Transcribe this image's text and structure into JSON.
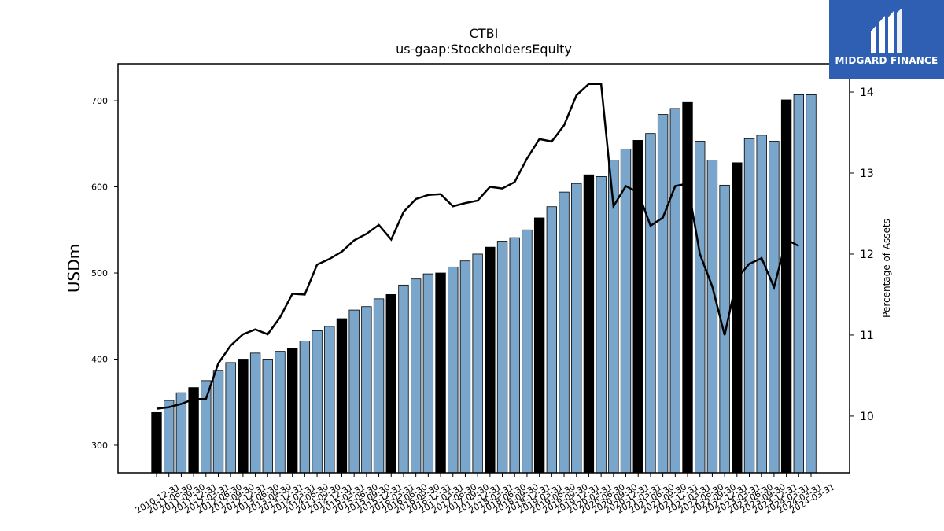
{
  "chart_data": {
    "type": "bar",
    "title": "CTBI",
    "subtitle": "us-gaap:StockholdersEquity",
    "ylabel": "USDm",
    "y2label": "Percentage of Assets",
    "ylim": [
      268,
      743
    ],
    "y2lim": [
      9.3,
      14.35
    ],
    "yticks": [
      300,
      400,
      500,
      600,
      700
    ],
    "y2ticks": [
      10,
      11,
      12,
      13,
      14
    ],
    "colors": {
      "bar": "#7aa6cc",
      "highlight": "#000000",
      "line": "#000000",
      "axis": "#000000"
    },
    "categories": [
      "2010-12-31",
      "2011-03-31",
      "2011-06-30",
      "2011-09-30",
      "2011-12-31",
      "2012-03-31",
      "2012-06-30",
      "2012-09-30",
      "2012-12-31",
      "2013-03-31",
      "2013-06-30",
      "2013-09-30",
      "2013-12-31",
      "2014-03-31",
      "2014-06-30",
      "2014-09-30",
      "2014-12-31",
      "2015-03-31",
      "2015-06-30",
      "2015-09-30",
      "2015-12-31",
      "2016-03-31",
      "2016-06-30",
      "2016-09-30",
      "2016-12-31",
      "2017-03-31",
      "2017-06-30",
      "2017-09-30",
      "2017-12-31",
      "2018-03-31",
      "2018-06-30",
      "2018-09-30",
      "2018-12-31",
      "2019-03-31",
      "2019-06-30",
      "2019-09-30",
      "2019-12-31",
      "2020-03-31",
      "2020-06-30",
      "2020-09-30",
      "2020-12-31",
      "2021-03-31",
      "2021-06-30",
      "2021-09-30",
      "2021-12-31",
      "2022-03-31",
      "2022-06-30",
      "2022-09-30",
      "2022-12-31",
      "2023-03-31",
      "2023-06-30",
      "2023-09-30",
      "2023-12-31",
      "2024-03-31"
    ],
    "x_tick_labels": [
      "2010-12-31",
      "2011-06-30",
      "2011-09-30",
      "2011-12-31",
      "2012-03-31",
      "2012-06-30",
      "2012-09-30",
      "2012-12-31",
      "2013-06-30",
      "2013-09-30",
      "2013-12-31",
      "2014-03-31",
      "2014-06-30",
      "2014-09-30",
      "2014-12-31",
      "2015-03-31",
      "2015-06-30",
      "2015-09-30",
      "2015-12-31",
      "2016-03-31",
      "2016-06-30",
      "2016-09-30",
      "2016-12-31",
      "2017-03-31",
      "2017-06-30",
      "2017-09-30",
      "2017-12-31",
      "2018-03-31",
      "2018-06-30",
      "2018-09-30",
      "2018-12-31",
      "2019-03-31",
      "2019-06-30",
      "2019-09-30",
      "2019-12-31",
      "2020-03-31",
      "2020-06-30",
      "2020-09-30",
      "2020-12-31",
      "2021-03-31",
      "2021-06-30",
      "2021-09-30",
      "2021-12-31",
      "2022-03-31",
      "2022-06-30",
      "2022-09-30",
      "2022-12-31",
      "2023-03-31",
      "2023-06-30",
      "2023-09-30",
      "2023-12-31",
      "2024-03-31",
      "2024-03-31",
      "2024-03-31"
    ],
    "series": [
      {
        "type": "bar",
        "values": [
          338,
          352,
          361,
          367,
          375,
          387,
          396,
          400,
          407,
          400,
          409,
          412,
          421,
          433,
          438,
          447,
          457,
          461,
          470,
          475,
          486,
          493,
          499,
          500,
          507,
          514,
          522,
          530,
          537,
          541,
          550,
          564,
          577,
          594,
          604,
          614,
          612,
          631,
          644,
          654,
          662,
          684,
          691,
          698,
          653,
          631,
          602,
          628,
          656,
          660,
          653,
          701,
          707,
          707
        ],
        "highlight": [
          true,
          false,
          false,
          true,
          false,
          false,
          false,
          true,
          false,
          false,
          false,
          true,
          false,
          false,
          false,
          true,
          false,
          false,
          false,
          true,
          false,
          false,
          false,
          true,
          false,
          false,
          false,
          true,
          false,
          false,
          false,
          true,
          false,
          false,
          false,
          true,
          false,
          false,
          false,
          true,
          false,
          false,
          false,
          true,
          false,
          false,
          false,
          true,
          false,
          false,
          false,
          true,
          false,
          false
        ]
      },
      {
        "type": "line",
        "axis": "right",
        "values": [
          10.09,
          10.11,
          10.15,
          10.21,
          10.21,
          10.65,
          10.87,
          11.01,
          11.07,
          11.01,
          11.22,
          11.51,
          11.5,
          11.87,
          11.94,
          12.03,
          12.17,
          12.25,
          12.36,
          12.18,
          12.52,
          12.68,
          12.73,
          12.74,
          12.59,
          12.63,
          12.66,
          12.83,
          12.81,
          12.89,
          13.18,
          13.42,
          13.39,
          13.59,
          13.96,
          14.1,
          14.1,
          12.59,
          12.84,
          12.76,
          12.35,
          12.45,
          12.84,
          12.87,
          12.0,
          11.6,
          11.0,
          11.7,
          11.88,
          11.95,
          11.59,
          12.18,
          12.1,
          null
        ]
      }
    ]
  }
}
